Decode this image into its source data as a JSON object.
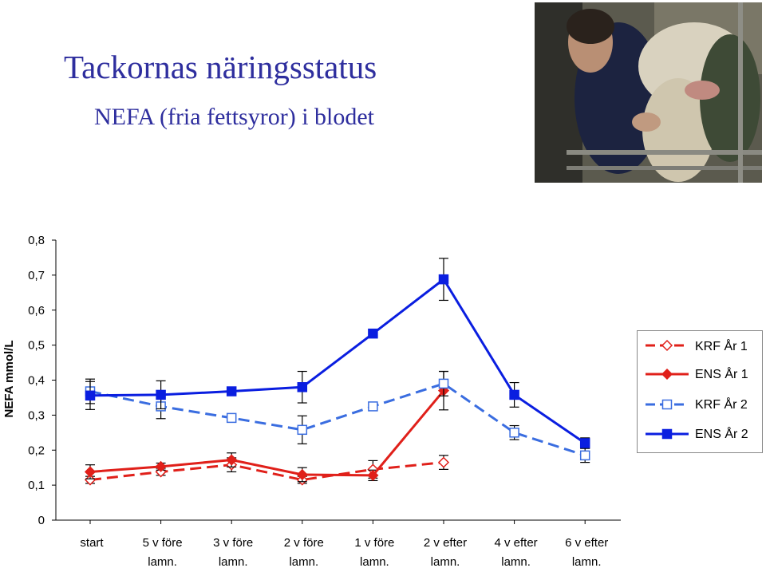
{
  "header": {
    "title": "Tackornas näringsstatus",
    "subtitle": "NEFA (fria fettsyror) i blodet"
  },
  "photo": {
    "icon": "sheep-blood-sampling-photo"
  },
  "chart_data": {
    "type": "line",
    "ylabel": "NEFA mmol/L",
    "ylim": [
      0,
      0.8
    ],
    "yticks": [
      "0",
      "0,1",
      "0,2",
      "0,3",
      "0,4",
      "0,5",
      "0,6",
      "0,7",
      "0,8"
    ],
    "categories": [
      [
        "start"
      ],
      [
        "5 v före",
        "lamn."
      ],
      [
        "3 v före",
        "lamn."
      ],
      [
        "2 v före",
        "lamn."
      ],
      [
        "1 v före",
        "lamn."
      ],
      [
        "2 v efter",
        "lamn."
      ],
      [
        "4 v efter",
        "lamn."
      ],
      [
        "6 v efter",
        "lamn."
      ]
    ],
    "grid": false,
    "legend_position": "right",
    "series": [
      {
        "name": "KRF År 1",
        "color": "#e0201a",
        "dashed": true,
        "marker": "diamond-open",
        "values": [
          0.115,
          0.138,
          0.158,
          0.115,
          0.145,
          0.165,
          null,
          null
        ],
        "errors": [
          0.01,
          0.01,
          0.02,
          0.01,
          0.025,
          0.02,
          null,
          null
        ]
      },
      {
        "name": "ENS År 1",
        "color": "#e0201a",
        "dashed": false,
        "marker": "diamond-filled",
        "values": [
          0.138,
          0.153,
          0.172,
          0.13,
          0.128,
          0.37,
          null,
          null
        ],
        "errors": [
          0.02,
          0.01,
          0.02,
          0.02,
          0.015,
          0.055,
          null,
          null
        ]
      },
      {
        "name": "KRF År 2",
        "color": "#3a6de0",
        "dashed": true,
        "marker": "square-open",
        "values": [
          0.368,
          0.325,
          0.292,
          0.258,
          0.325,
          0.39,
          0.25,
          0.185
        ],
        "errors": [
          0.035,
          0.035,
          null,
          0.04,
          null,
          0.035,
          0.02,
          0.02
        ]
      },
      {
        "name": "ENS År 2",
        "color": "#0a1ee0",
        "dashed": false,
        "marker": "square-filled",
        "values": [
          0.356,
          0.358,
          0.368,
          0.38,
          0.533,
          0.688,
          0.358,
          0.22
        ],
        "errors": [
          0.04,
          0.04,
          null,
          0.045,
          null,
          0.06,
          0.035,
          0.015
        ]
      }
    ]
  }
}
